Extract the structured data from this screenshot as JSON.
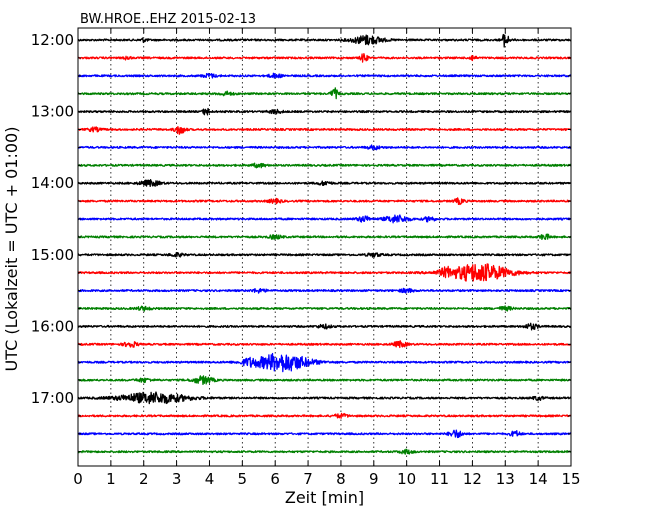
{
  "chart_data": {
    "type": "line",
    "title": "BW.HROE..EHZ 2015-02-13",
    "xlabel": "Zeit  [min]",
    "ylabel": "UTC (Lokalzeit = UTC + 01:00)",
    "xlim": [
      0,
      15
    ],
    "x_ticks": [
      "0",
      "1",
      "2",
      "3",
      "4",
      "5",
      "6",
      "7",
      "8",
      "9",
      "10",
      "11",
      "12",
      "13",
      "14",
      "15"
    ],
    "y_ticks": [
      "12:00",
      "13:00",
      "14:00",
      "15:00",
      "16:00",
      "17:00"
    ],
    "grid": "vertical dotted",
    "colors": [
      "#000000",
      "#ff0000",
      "#0000ff",
      "#008000"
    ],
    "series": [
      {
        "start": "12:00",
        "events": [
          [
            8.8,
            0.5,
            0.45
          ],
          [
            13.0,
            0.8,
            0.1
          ],
          [
            2.0,
            0.2,
            0.1
          ]
        ]
      },
      {
        "start": "12:15",
        "events": [
          [
            8.7,
            0.5,
            0.1
          ],
          [
            12.0,
            0.3,
            0.1
          ],
          [
            1.5,
            0.2,
            0.1
          ]
        ]
      },
      {
        "start": "12:30",
        "events": [
          [
            6.0,
            0.2,
            0.2
          ],
          [
            4.0,
            0.2,
            0.2
          ]
        ]
      },
      {
        "start": "12:45",
        "events": [
          [
            7.8,
            0.6,
            0.1
          ],
          [
            4.5,
            0.2,
            0.2
          ]
        ]
      },
      {
        "start": "13:00",
        "events": [
          [
            3.9,
            0.4,
            0.1
          ],
          [
            6.0,
            0.2,
            0.2
          ]
        ]
      },
      {
        "start": "13:15",
        "events": [
          [
            3.1,
            0.5,
            0.15
          ],
          [
            0.5,
            0.2,
            0.2
          ]
        ]
      },
      {
        "start": "13:30",
        "events": [
          [
            9.0,
            0.2,
            0.2
          ]
        ]
      },
      {
        "start": "13:45",
        "events": [
          [
            5.5,
            0.2,
            0.2
          ]
        ]
      },
      {
        "start": "14:00",
        "events": [
          [
            2.2,
            0.3,
            0.3
          ],
          [
            7.5,
            0.2,
            0.2
          ]
        ]
      },
      {
        "start": "14:15",
        "events": [
          [
            11.6,
            0.3,
            0.15
          ],
          [
            6.0,
            0.2,
            0.2
          ]
        ]
      },
      {
        "start": "14:30",
        "events": [
          [
            9.7,
            0.4,
            0.35
          ],
          [
            10.7,
            0.3,
            0.15
          ],
          [
            8.7,
            0.3,
            0.2
          ]
        ]
      },
      {
        "start": "14:45",
        "events": [
          [
            14.2,
            0.3,
            0.15
          ],
          [
            6.0,
            0.2,
            0.2
          ]
        ]
      },
      {
        "start": "15:00",
        "events": [
          [
            3.0,
            0.2,
            0.2
          ],
          [
            9.0,
            0.2,
            0.2
          ]
        ]
      },
      {
        "start": "15:15",
        "events": [
          [
            12.2,
            1.0,
            0.9
          ],
          [
            11.2,
            0.3,
            0.2
          ]
        ]
      },
      {
        "start": "15:30",
        "events": [
          [
            5.5,
            0.2,
            0.2
          ],
          [
            10.0,
            0.2,
            0.2
          ]
        ]
      },
      {
        "start": "15:45",
        "events": [
          [
            2.0,
            0.2,
            0.2
          ],
          [
            13.0,
            0.2,
            0.2
          ]
        ]
      },
      {
        "start": "16:00",
        "events": [
          [
            13.8,
            0.3,
            0.2
          ],
          [
            7.5,
            0.2,
            0.2
          ]
        ]
      },
      {
        "start": "16:15",
        "events": [
          [
            1.6,
            0.3,
            0.2
          ],
          [
            9.8,
            0.3,
            0.2
          ]
        ]
      },
      {
        "start": "16:30",
        "events": [
          [
            6.2,
            1.0,
            0.8
          ],
          [
            5.2,
            0.3,
            0.2
          ]
        ]
      },
      {
        "start": "16:45",
        "events": [
          [
            3.8,
            0.4,
            0.3
          ],
          [
            2.0,
            0.2,
            0.2
          ]
        ]
      },
      {
        "start": "17:00",
        "events": [
          [
            2.3,
            0.6,
            1.0
          ],
          [
            14.0,
            0.2,
            0.15
          ]
        ]
      },
      {
        "start": "17:15",
        "events": [
          [
            8.0,
            0.2,
            0.2
          ]
        ]
      },
      {
        "start": "17:30",
        "events": [
          [
            11.5,
            0.4,
            0.2
          ],
          [
            13.3,
            0.3,
            0.15
          ]
        ]
      },
      {
        "start": "17:45",
        "events": [
          [
            10.0,
            0.2,
            0.2
          ]
        ]
      }
    ]
  }
}
